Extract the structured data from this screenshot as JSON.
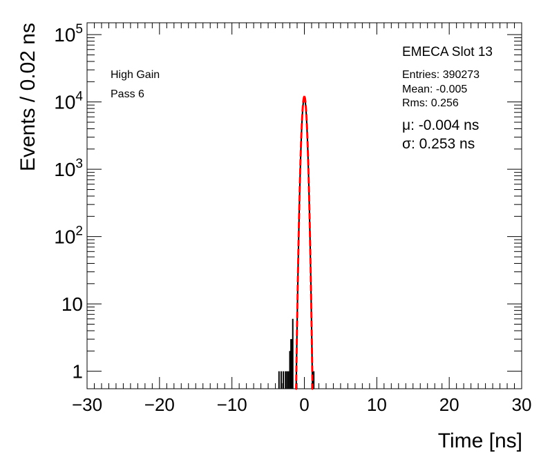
{
  "chart_data": {
    "type": "histogram",
    "x_axis": {
      "label": "Time [ns]",
      "range": [
        -30,
        30
      ],
      "ticks": [
        -30,
        -20,
        -10,
        0,
        10,
        20,
        30
      ],
      "tick_labels": [
        "−30",
        "−20",
        "−10",
        "0",
        "10",
        "20",
        "30"
      ]
    },
    "y_axis": {
      "label": "Events / 0.02 ns",
      "scale": "log",
      "range": [
        0.55,
        150000
      ],
      "ticks": [
        {
          "value": 1,
          "base": "1",
          "exp": ""
        },
        {
          "value": 10,
          "base": "10",
          "exp": ""
        },
        {
          "value": 100,
          "base": "10",
          "exp": "2"
        },
        {
          "value": 1000,
          "base": "10",
          "exp": "3"
        },
        {
          "value": 10000,
          "base": "10",
          "exp": "4"
        },
        {
          "value": 100000,
          "base": "10",
          "exp": "5"
        }
      ]
    },
    "left_labels": [
      "High Gain",
      "Pass 6"
    ],
    "title": "EMECA Slot 13",
    "stats": [
      "Entries: 390273",
      "Mean: -0.005",
      "Rms: 0.256"
    ],
    "fit_labels": [
      "μ: -0.004 ns",
      "σ: 0.253 ns"
    ],
    "fit": {
      "mu": -0.004,
      "sigma": 0.253,
      "peak": 12000,
      "color": "#ff0000"
    },
    "histogram_color": "#000000",
    "histogram_peak": 11500,
    "tail_entries": [
      {
        "x": -3.5,
        "y": 1
      },
      {
        "x": -3.2,
        "y": 1
      },
      {
        "x": -2.9,
        "y": 1
      },
      {
        "x": -2.6,
        "y": 1
      },
      {
        "x": -2.4,
        "y": 1
      },
      {
        "x": -2.2,
        "y": 1
      },
      {
        "x": -2.0,
        "y": 2
      },
      {
        "x": -1.85,
        "y": 3
      },
      {
        "x": -1.7,
        "y": 3
      },
      {
        "x": -1.6,
        "y": 6
      },
      {
        "x": 1.3,
        "y": 1
      }
    ]
  }
}
